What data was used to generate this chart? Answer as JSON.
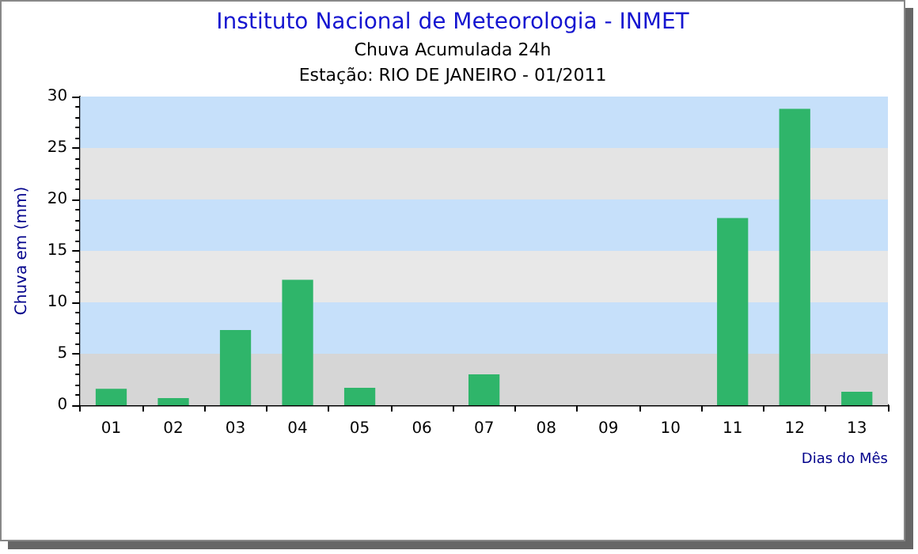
{
  "chart_data": {
    "type": "bar",
    "title": "Instituto Nacional de Meteorologia - INMET",
    "subtitle": "Chuva Acumulada 24h\nEstação: RIO DE JANEIRO - 01/2011",
    "xlabel": "Dias do Mês",
    "ylabel": "Chuva em (mm)",
    "categories": [
      "01",
      "02",
      "03",
      "04",
      "05",
      "06",
      "07",
      "08",
      "09",
      "10",
      "11",
      "12",
      "13"
    ],
    "values": [
      1.6,
      0.7,
      7.3,
      12.2,
      1.7,
      0,
      3.0,
      0,
      0,
      0,
      18.2,
      28.8,
      1.3
    ],
    "color": "#2fb56a",
    "ylim": [
      0,
      30
    ],
    "yticks": [
      0,
      5,
      10,
      15,
      20,
      25,
      30
    ],
    "bands": [
      {
        "axis": "y",
        "from": 0,
        "to": 5,
        "color": "#d6d6d6"
      },
      {
        "axis": "y",
        "from": 5,
        "to": 10,
        "color": "#c6e0fa"
      },
      {
        "axis": "y",
        "from": 10,
        "to": 15,
        "color": "#e8e8e8"
      },
      {
        "axis": "y",
        "from": 15,
        "to": 20,
        "color": "#c6e0fa"
      },
      {
        "axis": "y",
        "from": 20,
        "to": 25,
        "color": "#e4e4e4"
      },
      {
        "axis": "y",
        "from": 25,
        "to": 30,
        "color": "#c6e0fa"
      }
    ]
  }
}
